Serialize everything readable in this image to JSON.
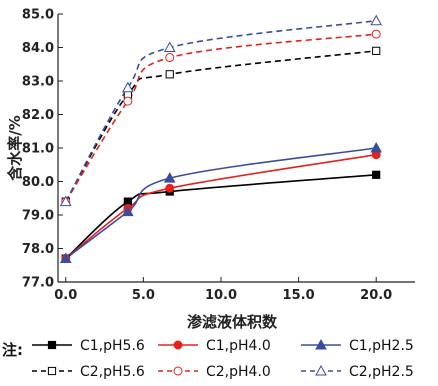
{
  "chart_data": {
    "type": "line",
    "xlabel": "渗滤液体积数",
    "ylabel": "含水率/%",
    "xlim": [
      -0.5,
      22.5
    ],
    "ylim": [
      77.0,
      85.0
    ],
    "xticks": [
      "0.0",
      "5.0",
      "10.0",
      "15.0",
      "20.0"
    ],
    "yticks": [
      "77.0",
      "78.0",
      "79.0",
      "80.0",
      "81.0",
      "82.0",
      "83.0",
      "84.0",
      "85.0"
    ],
    "legend_note": "注:",
    "legend_position": "bottom",
    "series": [
      {
        "name": "C1,pH5.6",
        "color": "#000000",
        "dash": "solid",
        "marker": "square",
        "filled": true,
        "x": [
          0,
          4,
          6.7,
          20
        ],
        "y": [
          77.7,
          79.4,
          79.7,
          80.2
        ]
      },
      {
        "name": "C1,pH4.0",
        "color": "#e8201c",
        "dash": "solid",
        "marker": "circle",
        "filled": true,
        "x": [
          0,
          4,
          6.7,
          20
        ],
        "y": [
          77.7,
          79.2,
          79.8,
          80.8
        ]
      },
      {
        "name": "C1,pH2.5",
        "color": "#3a4d9b",
        "dash": "solid",
        "marker": "triangle",
        "filled": true,
        "x": [
          0,
          4,
          6.7,
          20
        ],
        "y": [
          77.7,
          79.1,
          80.1,
          81.0
        ]
      },
      {
        "name": "C2,pH5.6",
        "color": "#000000",
        "dash": "dashed",
        "marker": "square",
        "filled": false,
        "x": [
          0,
          4,
          6.7,
          20
        ],
        "y": [
          79.4,
          82.6,
          83.2,
          83.9
        ]
      },
      {
        "name": "C2,pH4.0",
        "color": "#e8201c",
        "dash": "dashed",
        "marker": "circle",
        "filled": false,
        "x": [
          0,
          4,
          6.7,
          20
        ],
        "y": [
          79.4,
          82.4,
          83.7,
          84.4
        ]
      },
      {
        "name": "C2,pH2.5",
        "color": "#3a4d9b",
        "dash": "dashed",
        "marker": "triangle",
        "filled": false,
        "x": [
          0,
          4,
          6.7,
          20
        ],
        "y": [
          79.4,
          82.8,
          84.0,
          84.8
        ]
      }
    ]
  }
}
